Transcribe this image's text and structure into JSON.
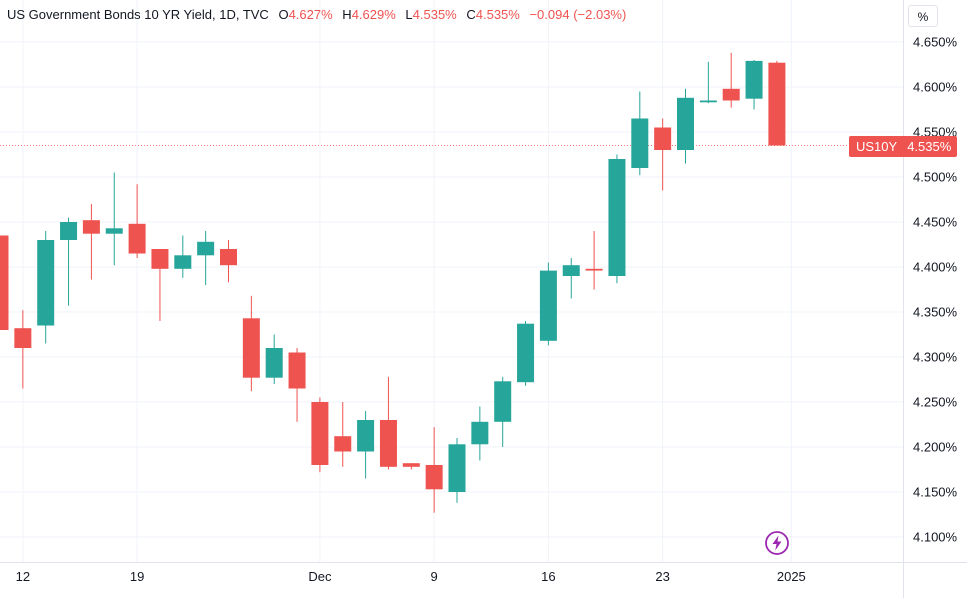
{
  "legend": {
    "title": "US Government Bonds 10 YR Yield, 1D, TVC",
    "open_label": "O",
    "open": "4.627%",
    "high_label": "H",
    "high": "4.629%",
    "low_label": "L",
    "low": "4.535%",
    "close_label": "C",
    "close": "4.535%",
    "change": "−0.094 (−2.03%)"
  },
  "unit_button": {
    "label": "%"
  },
  "price_badge": {
    "symbol": "US10Y",
    "value": "4.535%"
  },
  "icons": {
    "flash": "lightning-icon"
  },
  "colors": {
    "up": "#26a69a",
    "down": "#ef5350",
    "grid": "#f0f3fa",
    "axis_text": "#131722",
    "badge": "#ef5350",
    "flash": "#9c27b0"
  },
  "chart_data": {
    "type": "candlestick",
    "ylim": [
      4.09,
      4.67
    ],
    "y_ticks": [
      4.1,
      4.15,
      4.2,
      4.25,
      4.3,
      4.35,
      4.4,
      4.45,
      4.5,
      4.55,
      4.6,
      4.65
    ],
    "y_tick_labels": [
      "4.100%",
      "4.150%",
      "4.200%",
      "4.250%",
      "4.300%",
      "4.350%",
      "4.400%",
      "4.450%",
      "4.500%",
      "4.550%",
      "4.600%",
      "4.650%"
    ],
    "x_ticks": [
      {
        "label": "12",
        "index": 1
      },
      {
        "label": "19",
        "index": 6
      },
      {
        "label": "Dec",
        "index": 14
      },
      {
        "label": "9",
        "index": 19
      },
      {
        "label": "16",
        "index": 24
      },
      {
        "label": "23",
        "index": 29
      },
      {
        "label": "2025",
        "index": 34.5
      }
    ],
    "last_price": 4.535,
    "candles": [
      {
        "o": 4.435,
        "h": 4.435,
        "l": 4.33,
        "c": 4.33
      },
      {
        "o": 4.332,
        "h": 4.352,
        "l": 4.265,
        "c": 4.31
      },
      {
        "o": 4.335,
        "h": 4.44,
        "l": 4.315,
        "c": 4.43
      },
      {
        "o": 4.43,
        "h": 4.455,
        "l": 4.357,
        "c": 4.45
      },
      {
        "o": 4.452,
        "h": 4.47,
        "l": 4.386,
        "c": 4.437
      },
      {
        "o": 4.437,
        "h": 4.505,
        "l": 4.402,
        "c": 4.443
      },
      {
        "o": 4.448,
        "h": 4.492,
        "l": 4.41,
        "c": 4.415
      },
      {
        "o": 4.42,
        "h": 4.42,
        "l": 4.34,
        "c": 4.398
      },
      {
        "o": 4.398,
        "h": 4.435,
        "l": 4.388,
        "c": 4.413
      },
      {
        "o": 4.413,
        "h": 4.44,
        "l": 4.38,
        "c": 4.428
      },
      {
        "o": 4.42,
        "h": 4.43,
        "l": 4.383,
        "c": 4.402
      },
      {
        "o": 4.343,
        "h": 4.368,
        "l": 4.262,
        "c": 4.277
      },
      {
        "o": 4.277,
        "h": 4.325,
        "l": 4.27,
        "c": 4.31
      },
      {
        "o": 4.305,
        "h": 4.31,
        "l": 4.228,
        "c": 4.265
      },
      {
        "o": 4.25,
        "h": 4.255,
        "l": 4.172,
        "c": 4.18
      },
      {
        "o": 4.212,
        "h": 4.25,
        "l": 4.178,
        "c": 4.195
      },
      {
        "o": 4.195,
        "h": 4.24,
        "l": 4.165,
        "c": 4.23
      },
      {
        "o": 4.23,
        "h": 4.278,
        "l": 4.175,
        "c": 4.178
      },
      {
        "o": 4.182,
        "h": 4.182,
        "l": 4.175,
        "c": 4.178
      },
      {
        "o": 4.18,
        "h": 4.222,
        "l": 4.127,
        "c": 4.153
      },
      {
        "o": 4.15,
        "h": 4.21,
        "l": 4.138,
        "c": 4.203
      },
      {
        "o": 4.203,
        "h": 4.245,
        "l": 4.185,
        "c": 4.228
      },
      {
        "o": 4.228,
        "h": 4.278,
        "l": 4.2,
        "c": 4.273
      },
      {
        "o": 4.272,
        "h": 4.34,
        "l": 4.268,
        "c": 4.337
      },
      {
        "o": 4.318,
        "h": 4.405,
        "l": 4.313,
        "c": 4.396
      },
      {
        "o": 4.39,
        "h": 4.41,
        "l": 4.365,
        "c": 4.402
      },
      {
        "o": 4.398,
        "h": 4.44,
        "l": 4.375,
        "c": 4.396
      },
      {
        "o": 4.39,
        "h": 4.525,
        "l": 4.382,
        "c": 4.52
      },
      {
        "o": 4.51,
        "h": 4.595,
        "l": 4.502,
        "c": 4.565
      },
      {
        "o": 4.555,
        "h": 4.565,
        "l": 4.485,
        "c": 4.53
      },
      {
        "o": 4.53,
        "h": 4.598,
        "l": 4.515,
        "c": 4.588
      },
      {
        "o": 4.583,
        "h": 4.628,
        "l": 4.582,
        "c": 4.585
      },
      {
        "o": 4.598,
        "h": 4.638,
        "l": 4.577,
        "c": 4.585
      },
      {
        "o": 4.587,
        "h": 4.63,
        "l": 4.575,
        "c": 4.629
      },
      {
        "o": 4.627,
        "h": 4.629,
        "l": 4.535,
        "c": 4.535
      }
    ]
  }
}
